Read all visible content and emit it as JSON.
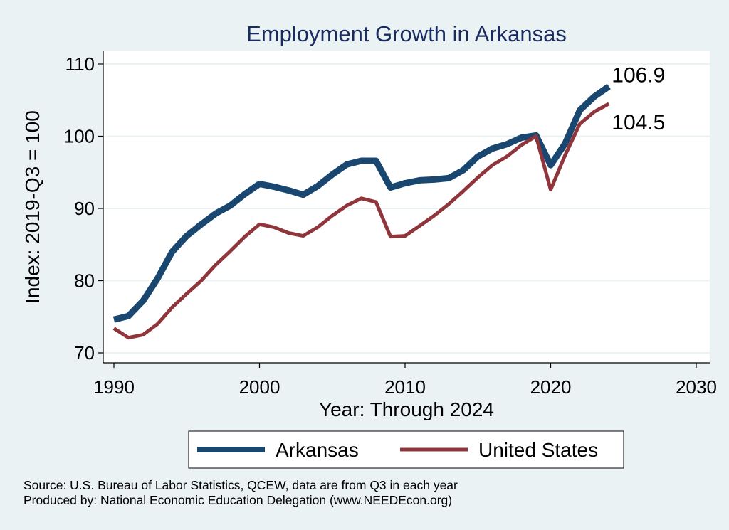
{
  "chart_data": {
    "type": "line",
    "title": "Employment Growth in Arkansas",
    "xlabel": "Year: Through 2024",
    "ylabel": "Index: 2019-Q3 = 100",
    "xlim": [
      1990,
      2030
    ],
    "ylim": [
      70,
      110
    ],
    "xticks": [
      1990,
      2000,
      2010,
      2020,
      2030
    ],
    "yticks": [
      70,
      80,
      90,
      100,
      110
    ],
    "grid": "horizontal",
    "legend_position": "bottom",
    "series": [
      {
        "name": "Arkansas",
        "color": "#1a476f",
        "x": [
          1990,
          1991,
          1992,
          1993,
          1994,
          1995,
          1996,
          1997,
          1998,
          1999,
          2000,
          2001,
          2002,
          2003,
          2004,
          2005,
          2006,
          2007,
          2008,
          2009,
          2010,
          2011,
          2012,
          2013,
          2014,
          2015,
          2016,
          2017,
          2018,
          2019,
          2020,
          2021,
          2022,
          2023,
          2024
        ],
        "values": [
          74.6,
          75.1,
          77.2,
          80.3,
          84.0,
          86.2,
          87.8,
          89.3,
          90.4,
          92.0,
          93.4,
          93.0,
          92.5,
          91.9,
          93.1,
          94.7,
          96.1,
          96.6,
          96.6,
          92.9,
          93.5,
          93.9,
          94.0,
          94.2,
          95.3,
          97.2,
          98.3,
          98.9,
          99.8,
          100.1,
          96.0,
          99.0,
          103.6,
          105.5,
          106.9
        ],
        "end_label": "106.9"
      },
      {
        "name": "United States",
        "color": "#90353b",
        "x": [
          1990,
          1991,
          1992,
          1993,
          1994,
          1995,
          1996,
          1997,
          1998,
          1999,
          2000,
          2001,
          2002,
          2003,
          2004,
          2005,
          2006,
          2007,
          2008,
          2009,
          2010,
          2011,
          2012,
          2013,
          2014,
          2015,
          2016,
          2017,
          2018,
          2019,
          2020,
          2021,
          2022,
          2023,
          2024
        ],
        "values": [
          73.4,
          72.1,
          72.5,
          74.0,
          76.3,
          78.2,
          80.0,
          82.2,
          84.1,
          86.1,
          87.8,
          87.4,
          86.6,
          86.2,
          87.4,
          89.0,
          90.4,
          91.4,
          90.9,
          86.1,
          86.2,
          87.6,
          89.0,
          90.6,
          92.4,
          94.3,
          96.0,
          97.2,
          98.8,
          100.0,
          92.6,
          97.4,
          101.7,
          103.4,
          104.5
        ],
        "end_label": "104.5"
      }
    ]
  },
  "source_lines": [
    "Source: U.S. Bureau of Labor Statistics, QCEW, data are from Q3 in each year",
    "Produced by: National Economic Education Delegation (www.NEEDEcon.org)"
  ]
}
